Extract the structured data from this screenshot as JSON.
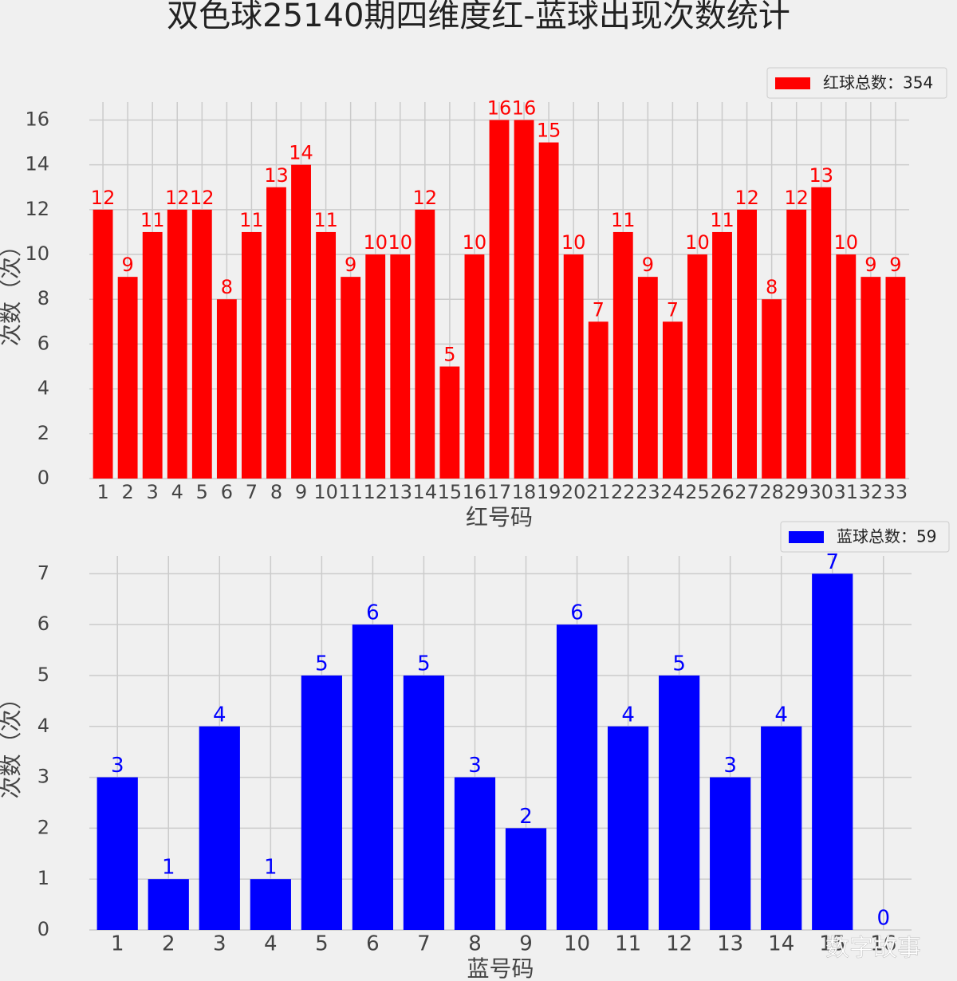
{
  "title": "双色球25140期四维度红-蓝球出现次数统计",
  "watermark": "数字故事",
  "chart_data": [
    {
      "type": "bar",
      "ylabel": "次数（次）",
      "xlabel": "红号码",
      "categories": [
        "1",
        "2",
        "3",
        "4",
        "5",
        "6",
        "7",
        "8",
        "9",
        "10",
        "11",
        "12",
        "13",
        "14",
        "15",
        "16",
        "17",
        "18",
        "19",
        "20",
        "21",
        "22",
        "23",
        "24",
        "25",
        "26",
        "27",
        "28",
        "29",
        "30",
        "31",
        "32",
        "33"
      ],
      "series": [
        {
          "name": "红球总数：354",
          "color": "#ff0000",
          "values": [
            12,
            9,
            11,
            12,
            12,
            8,
            11,
            13,
            14,
            11,
            9,
            10,
            10,
            12,
            5,
            10,
            16,
            16,
            15,
            10,
            7,
            11,
            9,
            7,
            10,
            11,
            12,
            8,
            12,
            13,
            10,
            9,
            9
          ]
        }
      ],
      "ylim": [
        0,
        16.8
      ],
      "yticks": [
        0,
        2,
        4,
        6,
        8,
        10,
        12,
        14,
        16
      ],
      "grid": true,
      "legend": "upper right"
    },
    {
      "type": "bar",
      "ylabel": "次数（次）",
      "xlabel": "蓝号码",
      "categories": [
        "1",
        "2",
        "3",
        "4",
        "5",
        "6",
        "7",
        "8",
        "9",
        "10",
        "11",
        "12",
        "13",
        "14",
        "15",
        "16"
      ],
      "series": [
        {
          "name": "蓝球总数：59",
          "color": "#0000ff",
          "values": [
            3,
            1,
            4,
            1,
            5,
            6,
            5,
            3,
            2,
            6,
            4,
            5,
            3,
            4,
            7,
            0
          ]
        }
      ],
      "ylim": [
        0,
        7.35
      ],
      "yticks": [
        0,
        1,
        2,
        3,
        4,
        5,
        6,
        7
      ],
      "grid": true,
      "legend": "upper right"
    }
  ]
}
